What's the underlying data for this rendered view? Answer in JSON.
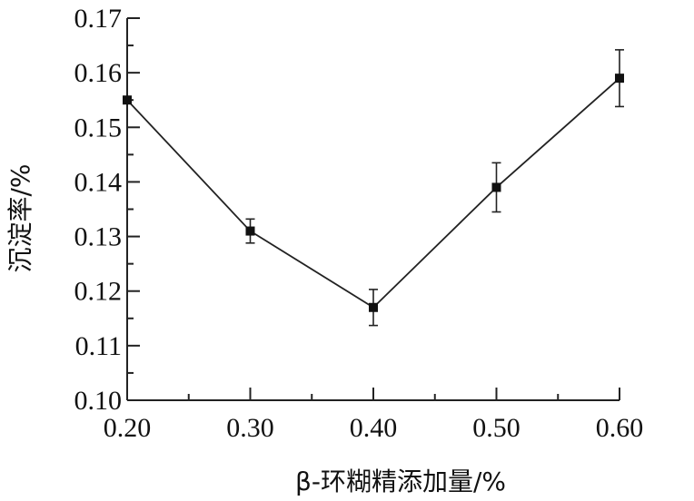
{
  "chart_data": {
    "type": "line",
    "xlabel": "β-环糊精添加量/%",
    "ylabel": "沉淀率/%",
    "xlim": [
      0.2,
      0.6
    ],
    "ylim": [
      0.1,
      0.17
    ],
    "x_ticks": [
      "0.20",
      "0.30",
      "0.40",
      "0.50",
      "0.60"
    ],
    "y_ticks": [
      "0.10",
      "0.11",
      "0.12",
      "0.13",
      "0.14",
      "0.15",
      "0.16",
      "0.17"
    ],
    "grid": false,
    "series": [
      {
        "x": [
          0.2,
          0.3,
          0.4,
          0.5,
          0.6
        ],
        "y": [
          0.155,
          0.131,
          0.117,
          0.139,
          0.159
        ],
        "error": [
          0.0,
          0.0022,
          0.0033,
          0.0045,
          0.0052
        ],
        "marker": "square",
        "color": "#222222"
      }
    ]
  }
}
